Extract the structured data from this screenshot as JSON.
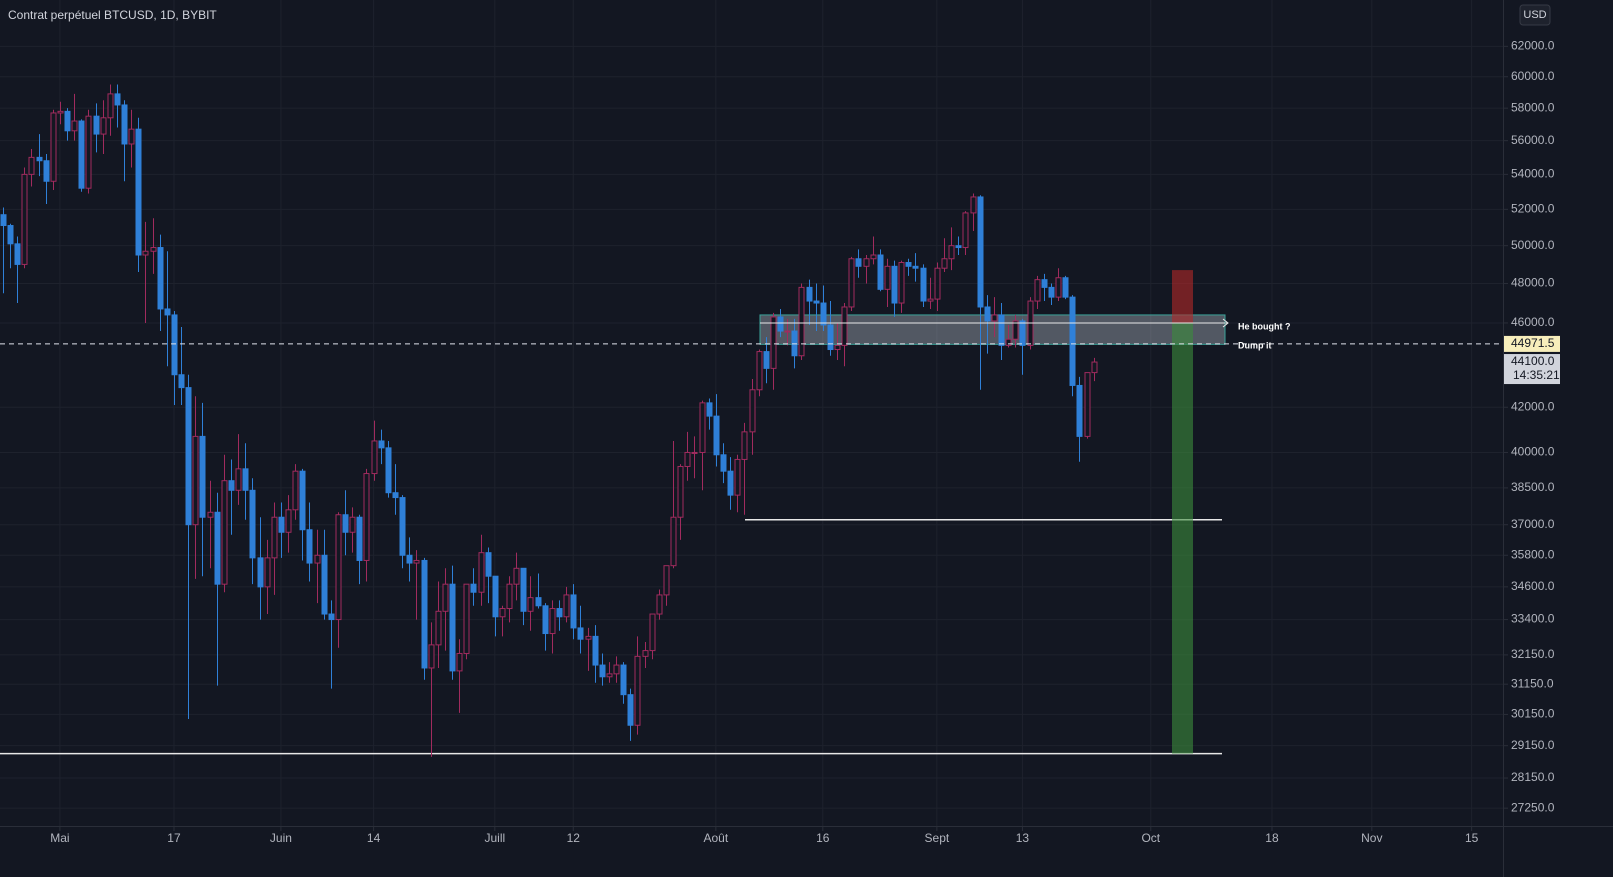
{
  "chart_data": {
    "type": "candlestick",
    "title": "Contrat perpétuel BTCUSD, 1D, BYBIT",
    "currency": "USD",
    "log_scale": true,
    "grid": true,
    "up_color": "#a12b5e",
    "down_color": "#2f80d8",
    "xlim": [
      112.6,
      323.4
    ],
    "ylim": [
      65180,
      26730
    ],
    "xticks": [
      {
        "value": 121,
        "label": "Mai"
      },
      {
        "value": 137,
        "label": "17"
      },
      {
        "value": 152,
        "label": "Juin"
      },
      {
        "value": 165,
        "label": "14"
      },
      {
        "value": 182,
        "label": "Juill"
      },
      {
        "value": 193,
        "label": "12"
      },
      {
        "value": 213,
        "label": "Août"
      },
      {
        "value": 228,
        "label": "16"
      },
      {
        "value": 244,
        "label": "Sept"
      },
      {
        "value": 256,
        "label": "13"
      },
      {
        "value": 274,
        "label": "Oct"
      },
      {
        "value": 291,
        "label": "18"
      },
      {
        "value": 305,
        "label": "Nov"
      },
      {
        "value": 319,
        "label": "15"
      }
    ],
    "yticks": [
      {
        "value": 62000,
        "label": "62000.0"
      },
      {
        "value": 60000,
        "label": "60000.0"
      },
      {
        "value": 58000,
        "label": "58000.0"
      },
      {
        "value": 56000,
        "label": "56000.0"
      },
      {
        "value": 54000,
        "label": "54000.0"
      },
      {
        "value": 52000,
        "label": "52000.0"
      },
      {
        "value": 50000,
        "label": "50000.0"
      },
      {
        "value": 48000,
        "label": "48000.0"
      },
      {
        "value": 46000,
        "label": "46000.0"
      },
      {
        "value": 42000,
        "label": "42000.0"
      },
      {
        "value": 40000,
        "label": "40000.0"
      },
      {
        "value": 38500,
        "label": "38500.0"
      },
      {
        "value": 37000,
        "label": "37000.0"
      },
      {
        "value": 35800,
        "label": "35800.0"
      },
      {
        "value": 34600,
        "label": "34600.0"
      },
      {
        "value": 33400,
        "label": "33400.0"
      },
      {
        "value": 32150,
        "label": "32150.0"
      },
      {
        "value": 31150,
        "label": "31150.0"
      },
      {
        "value": 30150,
        "label": "30150.0"
      },
      {
        "value": 29150,
        "label": "29150.0"
      },
      {
        "value": 28150,
        "label": "28150.0"
      },
      {
        "value": 27250,
        "label": "27250.0"
      }
    ],
    "x": [
      113,
      114,
      115,
      116,
      117,
      118,
      119,
      120,
      121,
      122,
      123,
      124,
      125,
      126,
      127,
      128,
      129,
      130,
      131,
      132,
      133,
      134,
      135,
      136,
      137,
      138,
      139,
      140,
      141,
      142,
      143,
      144,
      145,
      146,
      147,
      148,
      149,
      150,
      151,
      152,
      153,
      154,
      155,
      156,
      157,
      158,
      159,
      160,
      161,
      162,
      163,
      164,
      165,
      166,
      167,
      168,
      169,
      170,
      171,
      172,
      173,
      174,
      175,
      176,
      177,
      178,
      179,
      180,
      181,
      182,
      183,
      184,
      185,
      186,
      187,
      188,
      189,
      190,
      191,
      192,
      193,
      194,
      195,
      196,
      197,
      198,
      199,
      200,
      201,
      202,
      203,
      204,
      205,
      206,
      207,
      208,
      209,
      210,
      211,
      212,
      213,
      214,
      215,
      216,
      217,
      218,
      219,
      220,
      221,
      222,
      223,
      224,
      225,
      226,
      227,
      228,
      229,
      230,
      231,
      232,
      233,
      234,
      235,
      236,
      237,
      238,
      239,
      240,
      241,
      242,
      243,
      244,
      245,
      246,
      247,
      248,
      249,
      250,
      251,
      252,
      253,
      254,
      255,
      256,
      257,
      258,
      259,
      260,
      261,
      262,
      263,
      264,
      265,
      266
    ],
    "open": [
      51700,
      51100,
      50100,
      49000,
      54000,
      55000,
      54800,
      53600,
      57700,
      57800,
      56600,
      57200,
      53200,
      57500,
      56400,
      57400,
      58900,
      58200,
      55800,
      56700,
      49500,
      49700,
      49900,
      46700,
      46400,
      43500,
      42900,
      37000,
      40700,
      37300,
      37500,
      34700,
      38800,
      38400,
      39300,
      38400,
      35700,
      34600,
      35700,
      37300,
      36700,
      37600,
      39200,
      36800,
      35500,
      35800,
      33600,
      33400,
      37400,
      36700,
      37300,
      35600,
      39100,
      40500,
      40200,
      38300,
      38100,
      35800,
      35500,
      35600,
      31700,
      32500,
      33700,
      34700,
      31600,
      32200,
      34700,
      34400,
      35900,
      35000,
      33500,
      33800,
      34700,
      35300,
      33700,
      34200,
      33900,
      32900,
      33800,
      33500,
      34300,
      33100,
      32700,
      32800,
      31800,
      31400,
      31500,
      31800,
      30800,
      29800,
      32100,
      32300,
      33600,
      34300,
      35400,
      37300,
      39400,
      40000,
      40000,
      42200,
      41600,
      39900,
      39200,
      38200,
      39700,
      40900,
      42800,
      44600,
      43800,
      46300,
      45600,
      45600,
      44400,
      47800,
      47100,
      47000,
      45900,
      44700,
      44900,
      46800,
      49300,
      48900,
      49300,
      49500,
      47700,
      48900,
      47000,
      49100,
      48900,
      48800,
      47100,
      47200,
      48800,
      49300,
      50000,
      49900,
      51800,
      52700,
      46800,
      46100,
      46400,
      44900,
      45200,
      46100,
      44900,
      47100,
      48200,
      47800,
      47300,
      48300,
      47300,
      43000,
      40700,
      43600
    ],
    "high": [
      52100,
      51200,
      50500,
      54400,
      55500,
      56400,
      55200,
      57900,
      58400,
      58000,
      58900,
      57300,
      57900,
      58300,
      58500,
      59500,
      59500,
      58500,
      57900,
      57400,
      51300,
      51500,
      50600,
      49700,
      46600,
      45800,
      43500,
      42500,
      42200,
      38800,
      38300,
      39900,
      39700,
      40800,
      40400,
      38900,
      37300,
      36400,
      37900,
      37900,
      38200,
      39500,
      39300,
      37900,
      36800,
      36800,
      34100,
      37500,
      38400,
      37700,
      37400,
      39300,
      41400,
      41000,
      40500,
      39500,
      38200,
      36500,
      36000,
      35700,
      33300,
      34800,
      35300,
      35400,
      32700,
      34700,
      35300,
      36600,
      36100,
      35000,
      33900,
      35000,
      35900,
      35300,
      35000,
      35100,
      34000,
      34100,
      34100,
      34600,
      34700,
      33900,
      33100,
      33200,
      32200,
      31900,
      32100,
      31900,
      31000,
      32800,
      32600,
      33600,
      34500,
      35400,
      40500,
      39500,
      40900,
      40700,
      42300,
      42400,
      42600,
      40400,
      39800,
      39900,
      41300,
      43300,
      44700,
      45300,
      46500,
      46700,
      46200,
      46200,
      48000,
      48200,
      48000,
      47900,
      47100,
      46000,
      47000,
      49400,
      49800,
      49500,
      50500,
      49800,
      49300,
      49200,
      49200,
      49300,
      49600,
      49000,
      48300,
      49100,
      50400,
      51000,
      50500,
      51900,
      52900,
      52800,
      47400,
      47300,
      47000,
      45900,
      46400,
      46200,
      47300,
      48400,
      48500,
      48000,
      48800,
      48400,
      47400,
      43400,
      43600,
      44300
    ],
    "low": [
      47500,
      48800,
      47000,
      48800,
      53300,
      53900,
      52300,
      53100,
      57000,
      56000,
      56000,
      53000,
      52900,
      55300,
      55200,
      56300,
      56800,
      53600,
      54400,
      48600,
      46000,
      48500,
      45600,
      43900,
      42100,
      42100,
      30000,
      34900,
      35000,
      35300,
      31100,
      34400,
      36600,
      37800,
      37200,
      34700,
      33400,
      33600,
      34300,
      35700,
      35900,
      37200,
      35600,
      34800,
      34000,
      33400,
      31000,
      32400,
      35800,
      35900,
      34700,
      34800,
      38800,
      39500,
      38100,
      37400,
      35300,
      34800,
      33400,
      31300,
      28800,
      31700,
      32300,
      31300,
      30200,
      32000,
      33900,
      33900,
      34000,
      32800,
      32800,
      33300,
      34100,
      33200,
      33000,
      33800,
      32300,
      32200,
      33000,
      33300,
      32700,
      32200,
      31600,
      31200,
      31100,
      31200,
      31200,
      30500,
      29300,
      29500,
      31700,
      32000,
      33400,
      33900,
      35300,
      36400,
      38800,
      38900,
      38400,
      41000,
      39400,
      38700,
      37600,
      37500,
      37400,
      39900,
      42500,
      43100,
      42800,
      45300,
      44900,
      43800,
      44200,
      45900,
      45600,
      45600,
      44400,
      44200,
      43900,
      46600,
      48300,
      48000,
      49000,
      47600,
      46800,
      46300,
      46500,
      48400,
      48100,
      46800,
      46700,
      46600,
      48600,
      48700,
      49500,
      49500,
      50800,
      42800,
      44500,
      45300,
      44200,
      44800,
      44800,
      43500,
      44700,
      46700,
      47100,
      46900,
      47100,
      47200,
      42500,
      39600,
      40600,
      43200
    ],
    "close": [
      51100,
      50100,
      49000,
      54000,
      55000,
      54800,
      53600,
      57700,
      57800,
      56600,
      57200,
      53200,
      57500,
      56400,
      57400,
      58900,
      58200,
      55800,
      56700,
      49500,
      49700,
      49900,
      46700,
      46400,
      43500,
      42900,
      37000,
      40700,
      37300,
      37500,
      34700,
      38800,
      38400,
      39300,
      38400,
      35700,
      34600,
      35700,
      37300,
      36700,
      37600,
      39200,
      36800,
      35500,
      35800,
      33600,
      33400,
      37400,
      36700,
      37300,
      35600,
      39100,
      40500,
      40200,
      38300,
      38100,
      35800,
      35500,
      35600,
      31700,
      32500,
      33700,
      34700,
      31600,
      32200,
      34700,
      34400,
      35900,
      35000,
      33500,
      33800,
      34700,
      35300,
      33700,
      34200,
      33900,
      32900,
      33800,
      33500,
      34300,
      33100,
      32700,
      32800,
      31800,
      31400,
      31500,
      31800,
      30800,
      29800,
      32100,
      32300,
      33600,
      34300,
      35400,
      37300,
      39400,
      40000,
      40000,
      42200,
      41600,
      39900,
      39200,
      38200,
      39700,
      40900,
      42800,
      44600,
      43800,
      46300,
      45600,
      45600,
      44400,
      47800,
      47100,
      47000,
      45900,
      44700,
      44900,
      46800,
      49300,
      48900,
      49300,
      49500,
      47700,
      48900,
      47000,
      49100,
      48900,
      48800,
      47100,
      47200,
      48800,
      49300,
      50000,
      49900,
      51800,
      52700,
      46800,
      46100,
      46400,
      44900,
      45200,
      46100,
      44900,
      47100,
      48200,
      47800,
      47300,
      48300,
      47300,
      43000,
      40700,
      43600,
      44100
    ],
    "price_line": 44971.5,
    "last_price": {
      "value": 44100,
      "label": "44100.0"
    },
    "countdown": "14:35:21",
    "support_lines": [
      37200,
      28900
    ],
    "zone": {
      "low": 44950,
      "high": 46400
    },
    "position": {
      "entry": 46000,
      "stop": 48700,
      "target": 28900
    },
    "annotations": [
      {
        "text": "He bought ?",
        "value": 46000
      },
      {
        "text": "Dump it",
        "value": 44971.5
      }
    ]
  }
}
